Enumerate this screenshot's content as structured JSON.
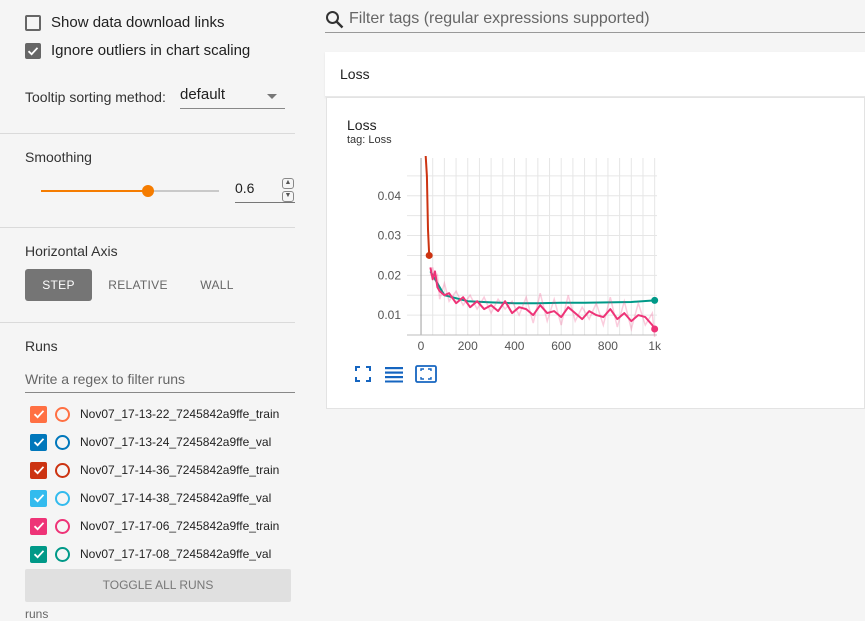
{
  "settings": {
    "show_download_links": {
      "label": "Show data download links",
      "checked": false
    },
    "ignore_outliers": {
      "label": "Ignore outliers in chart scaling",
      "checked": true
    },
    "tooltip_sort": {
      "label": "Tooltip sorting method:",
      "value": "default"
    }
  },
  "smoothing": {
    "label": "Smoothing",
    "value": "0.6",
    "level": 0.6
  },
  "horizontal_axis": {
    "label": "Horizontal Axis",
    "options": [
      "STEP",
      "RELATIVE",
      "WALL"
    ],
    "selected": "STEP"
  },
  "runs": {
    "label": "Runs",
    "filter_placeholder": "Write a regex to filter runs",
    "items": [
      {
        "name": "Nov07_17-13-22_7245842a9ffe_train",
        "color": "#ff7043",
        "checked": true
      },
      {
        "name": "Nov07_17-13-24_7245842a9ffe_val",
        "color": "#0077bb",
        "checked": true
      },
      {
        "name": "Nov07_17-14-36_7245842a9ffe_train",
        "color": "#cc3311",
        "checked": true
      },
      {
        "name": "Nov07_17-14-38_7245842a9ffe_val",
        "color": "#33bbee",
        "checked": true
      },
      {
        "name": "Nov07_17-17-06_7245842a9ffe_train",
        "color": "#ee3377",
        "checked": true
      },
      {
        "name": "Nov07_17-17-08_7245842a9ffe_val",
        "color": "#009988",
        "checked": true
      }
    ],
    "toggle_all_label": "TOGGLE ALL RUNS",
    "footer": "runs"
  },
  "main": {
    "filter_placeholder": "Filter tags (regular expressions supported)",
    "section_title": "Loss"
  },
  "chart_data": {
    "type": "line",
    "title": "Loss",
    "subtitle": "tag: Loss",
    "xlabel": "",
    "ylabel": "",
    "xlim": [
      -60,
      1010
    ],
    "ylim": [
      0.005,
      0.0495
    ],
    "x_ticks": [
      {
        "v": 0,
        "label": "0"
      },
      {
        "v": 200,
        "label": "200"
      },
      {
        "v": 400,
        "label": "400"
      },
      {
        "v": 600,
        "label": "600"
      },
      {
        "v": 800,
        "label": "800"
      },
      {
        "v": 1000,
        "label": "1k"
      }
    ],
    "y_ticks": [
      {
        "v": 0.01,
        "label": "0.01"
      },
      {
        "v": 0.02,
        "label": "0.02"
      },
      {
        "v": 0.03,
        "label": "0.03"
      },
      {
        "v": 0.04,
        "label": "0.04"
      }
    ],
    "grid": true,
    "series": [
      {
        "run": "Nov07_17-14-36_7245842a9ffe_train",
        "color": "#cc3311",
        "x": [
          20,
          25,
          30,
          35
        ],
        "y": [
          0.05,
          0.045,
          0.0315,
          0.025
        ]
      },
      {
        "run": "Nov07_17-17-08_7245842a9ffe_val",
        "color": "#009988",
        "x": [
          40,
          100,
          200,
          300,
          400,
          500,
          600,
          700,
          800,
          900,
          1000
        ],
        "y": [
          0.021,
          0.015,
          0.0135,
          0.0132,
          0.013,
          0.013,
          0.0131,
          0.0131,
          0.0132,
          0.0133,
          0.0137
        ]
      },
      {
        "run": "Nov07_17-17-06_7245842a9ffe_train",
        "color": "#ee3377",
        "x": [
          40,
          50,
          60,
          70,
          80,
          100,
          120,
          150,
          180,
          210,
          240,
          270,
          300,
          330,
          360,
          390,
          420,
          450,
          480,
          510,
          540,
          570,
          600,
          630,
          660,
          690,
          720,
          750,
          780,
          810,
          840,
          870,
          900,
          930,
          960,
          990,
          1000
        ],
        "y": [
          0.022,
          0.019,
          0.021,
          0.017,
          0.016,
          0.015,
          0.0155,
          0.013,
          0.0145,
          0.012,
          0.0135,
          0.0115,
          0.0125,
          0.011,
          0.0135,
          0.0105,
          0.012,
          0.0115,
          0.01,
          0.0125,
          0.0105,
          0.011,
          0.0095,
          0.012,
          0.0105,
          0.009,
          0.011,
          0.01,
          0.0095,
          0.0115,
          0.009,
          0.0105,
          0.0085,
          0.01,
          0.0095,
          0.0075,
          0.0065
        ]
      }
    ]
  }
}
